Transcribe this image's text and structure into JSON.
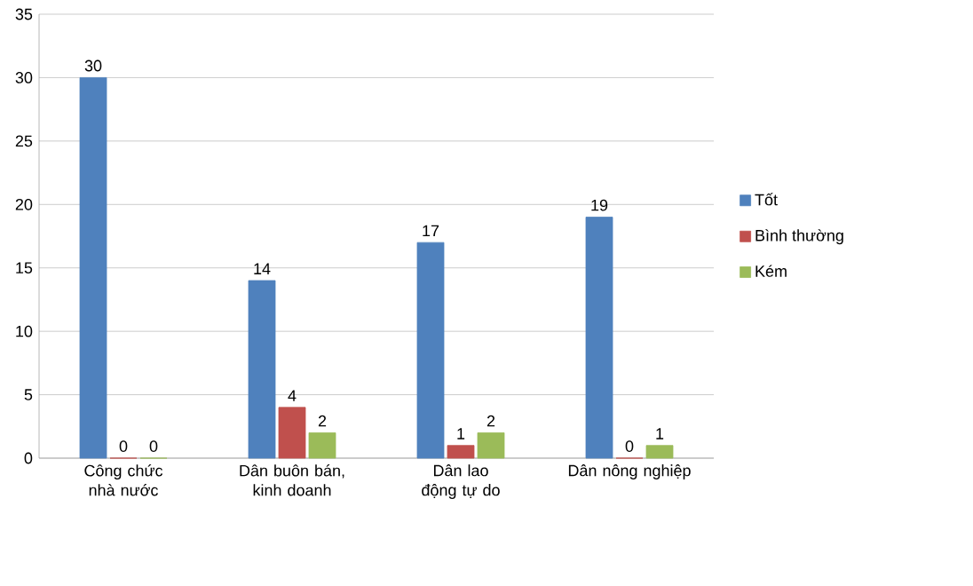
{
  "chart_data": {
    "type": "bar",
    "categories": [
      "Công chức nhà nước",
      "Dân buôn bán, kinh doanh",
      "Dân lao động tự do",
      "Dân nông nghiệp"
    ],
    "series": [
      {
        "name": "Tốt",
        "color": "#4f81bd",
        "values": [
          30,
          14,
          17,
          19
        ]
      },
      {
        "name": "Bình thường",
        "color": "#c0504d",
        "values": [
          0,
          4,
          1,
          0
        ]
      },
      {
        "name": "Kém",
        "color": "#9bbb59",
        "values": [
          0,
          2,
          2,
          1
        ]
      }
    ],
    "ylim": [
      0,
      35
    ],
    "yticks": [
      0,
      5,
      10,
      15,
      20,
      25,
      30,
      35
    ],
    "grid": "y",
    "legend": "right",
    "data_labels": true
  }
}
